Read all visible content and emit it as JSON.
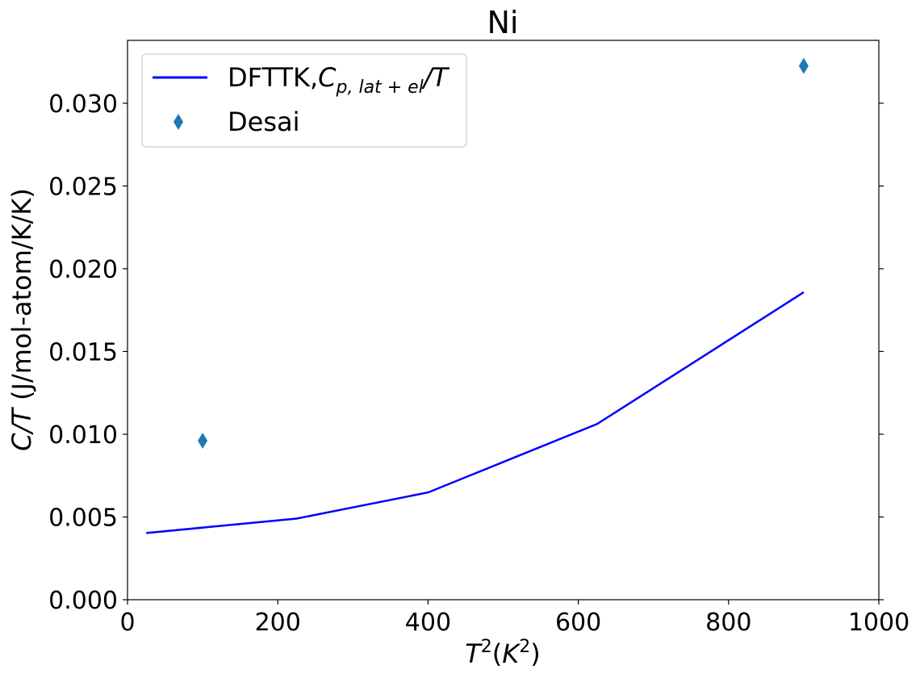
{
  "chart_data": {
    "type": "line",
    "title": "Ni",
    "xlabel": {
      "base": "T",
      "sup1": "2",
      "open": "(",
      "K": "K",
      "sup2": "2",
      "close": ")"
    },
    "ylabel": {
      "italic": "C/T",
      "rest": " (J/mol-atom/K/K)"
    },
    "xlim": [
      0,
      1000
    ],
    "ylim": [
      0,
      0.0338
    ],
    "xticks": [
      0,
      200,
      400,
      600,
      800,
      1000
    ],
    "yticks": [
      0.0,
      0.005,
      0.01,
      0.015,
      0.02,
      0.025,
      0.03
    ],
    "ytick_labels": [
      "0.000",
      "0.005",
      "0.010",
      "0.015",
      "0.020",
      "0.025",
      "0.030"
    ],
    "grid": false,
    "legend_position": "top-left",
    "series": [
      {
        "name": "DFTTK,C_{p,lat+el}/T",
        "legend": {
          "prefix": "DFTTK,",
          "C": "C",
          "sub": "p, lat + el",
          "suffix": "/T"
        },
        "kind": "line",
        "color": "#0000ff",
        "x": [
          25,
          225,
          400,
          625,
          900
        ],
        "y": [
          0.00403,
          0.0049,
          0.00648,
          0.01062,
          0.01858
        ]
      },
      {
        "name": "Desai",
        "kind": "scatter",
        "marker": "diamond",
        "color": "#1f77b4",
        "x": [
          100,
          900
        ],
        "y": [
          0.00961,
          0.03226
        ]
      }
    ]
  }
}
